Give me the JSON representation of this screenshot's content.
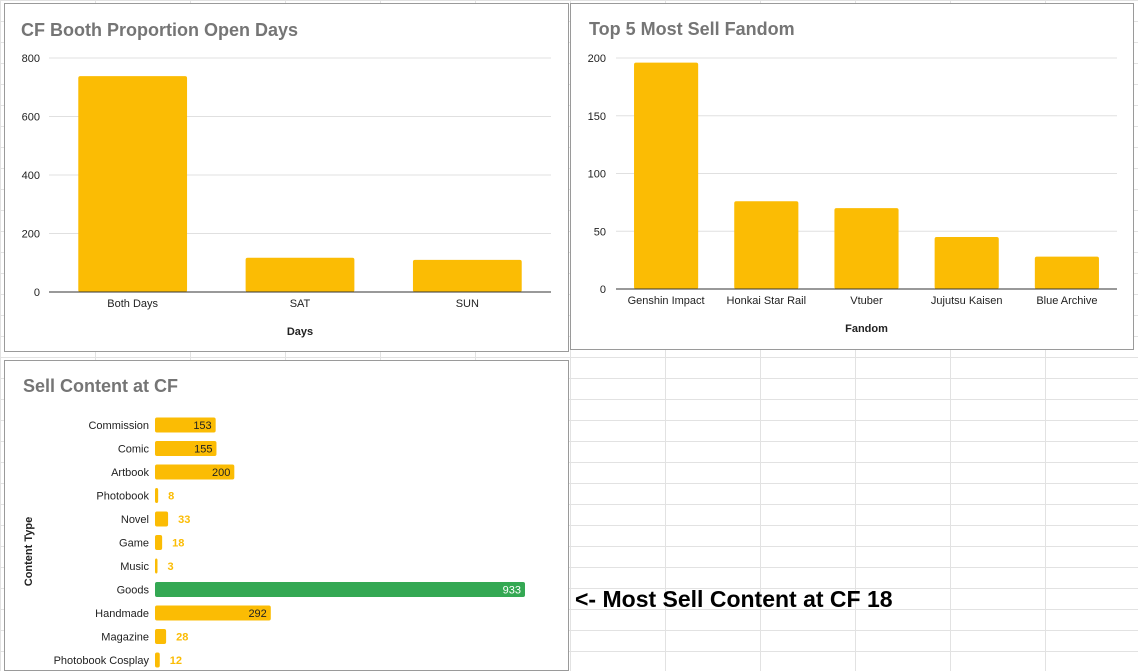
{
  "chart_data": [
    {
      "type": "bar",
      "title": "CF Booth Proportion Open Days",
      "xlabel": "Days",
      "ylabel": "",
      "categories": [
        "Both Days",
        "SAT",
        "SUN"
      ],
      "values": [
        738,
        117,
        110
      ],
      "ylim": [
        0,
        800
      ],
      "yticks": [
        "0",
        "200",
        "400",
        "600",
        "800"
      ],
      "grid": true,
      "color": "#fbbc04"
    },
    {
      "type": "bar",
      "title": "Top 5 Most Sell Fandom",
      "xlabel": "Fandom",
      "ylabel": "",
      "categories": [
        "Genshin Impact",
        "Honkai Star Rail",
        "Vtuber",
        "Jujutsu Kaisen",
        "Blue Archive"
      ],
      "values": [
        196,
        76,
        70,
        45,
        28
      ],
      "ylim": [
        0,
        200
      ],
      "yticks": [
        "0",
        "50",
        "100",
        "150",
        "200"
      ],
      "grid": true,
      "color": "#fbbc04"
    },
    {
      "type": "bar",
      "orientation": "horizontal",
      "title": "Sell Content at CF",
      "xlabel": "",
      "ylabel": "Content Type",
      "categories": [
        "Commission",
        "Comic",
        "Artbook",
        "Photobook",
        "Novel",
        "Game",
        "Music",
        "Goods",
        "Handmade",
        "Magazine",
        "Photobook Cosplay"
      ],
      "values": [
        153,
        155,
        200,
        8,
        33,
        18,
        3,
        933,
        292,
        28,
        12
      ],
      "data_labels": [
        "153",
        "155",
        "200",
        "8",
        "33",
        "18",
        "3",
        "933",
        "292",
        "28",
        "12"
      ],
      "highlight_category": "Goods",
      "color": "#fbbc04",
      "highlight_color": "#34a853"
    }
  ],
  "annotation": "<- Most Sell Content at CF 18"
}
